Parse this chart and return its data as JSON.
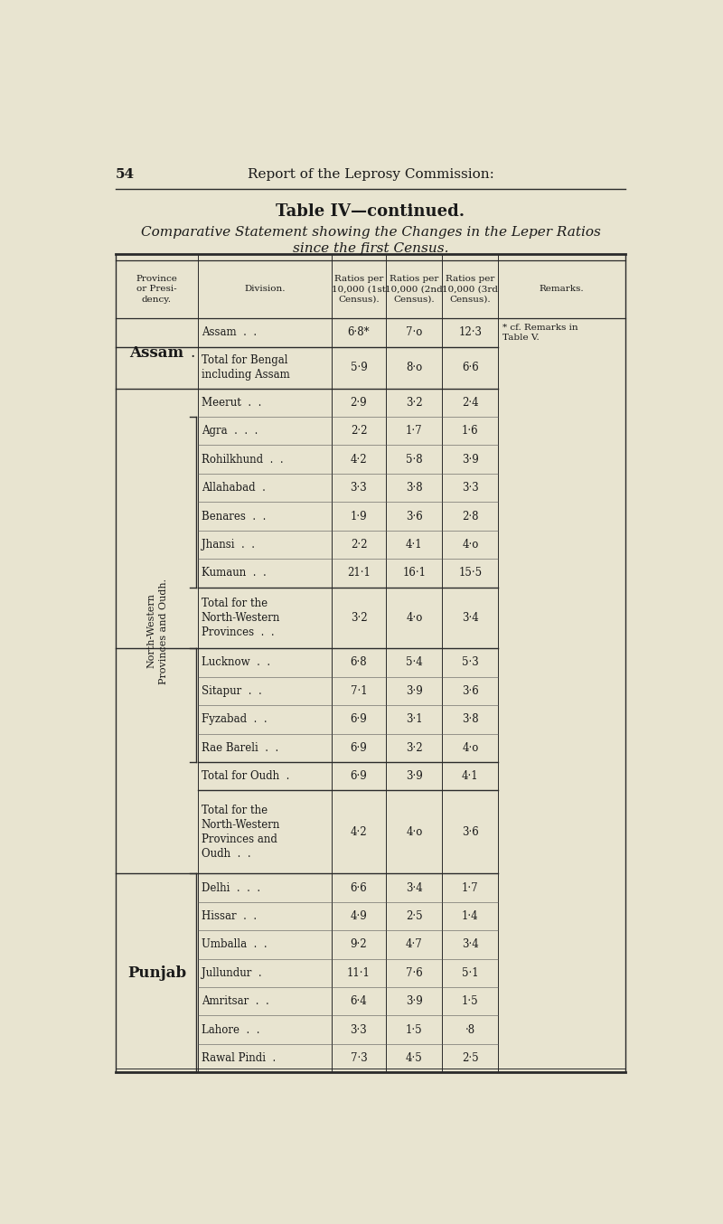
{
  "page_number": "54",
  "header": "Report of the Leprosy Commission:",
  "title": "Table IV—continued.",
  "subtitle": "Comparative Statement showing the Changes in the Leper Ratios\nsince the first Census.",
  "bg_color": "#e8e4d0",
  "rows": [
    {
      "province": "Assam",
      "province_bold": true,
      "division": "Assam  .  .",
      "r1": "6·8*",
      "r2": "7·o",
      "r3": "12·3",
      "remarks": "* cf. Remarks in\nTable V.",
      "div_line_before": false,
      "div_line_after": true
    },
    {
      "province": "",
      "province_bold": false,
      "division": "Total for Bengal\nincluding Assam",
      "r1": "5·9",
      "r2": "8·o",
      "r3": "6·6",
      "remarks": "",
      "div_line_before": false,
      "div_line_after": true
    },
    {
      "province": "",
      "province_bold": false,
      "division": "Meerut  .  .",
      "r1": "2·9",
      "r2": "3·2",
      "r3": "2·4",
      "remarks": "",
      "div_line_before": false,
      "div_line_after": false
    },
    {
      "province": "",
      "province_bold": false,
      "division": "Agra  .  .  .",
      "r1": "2·2",
      "r2": "1·7",
      "r3": "1·6",
      "remarks": "",
      "div_line_before": false,
      "div_line_after": false
    },
    {
      "province": "",
      "province_bold": false,
      "division": "Rohilkhund  .  .",
      "r1": "4·2",
      "r2": "5·8",
      "r3": "3·9",
      "remarks": "",
      "div_line_before": false,
      "div_line_after": false
    },
    {
      "province": "",
      "province_bold": false,
      "division": "Allahabad  .",
      "r1": "3·3",
      "r2": "3·8",
      "r3": "3·3",
      "remarks": "",
      "div_line_before": false,
      "div_line_after": false
    },
    {
      "province": "",
      "province_bold": false,
      "division": "Benares  .  .",
      "r1": "1·9",
      "r2": "3·6",
      "r3": "2·8",
      "remarks": "",
      "div_line_before": false,
      "div_line_after": false
    },
    {
      "province": "",
      "province_bold": false,
      "division": "Jhansi  .  .",
      "r1": "2·2",
      "r2": "4·1",
      "r3": "4·o",
      "remarks": "",
      "div_line_before": false,
      "div_line_after": false
    },
    {
      "province": "",
      "province_bold": false,
      "division": "Kumaun  .  .",
      "r1": "21·1",
      "r2": "16·1",
      "r3": "15·5",
      "remarks": "",
      "div_line_before": false,
      "div_line_after": false
    },
    {
      "province": "",
      "province_bold": false,
      "division": "Total for the\nNorth-Western\nProvinces  .  .",
      "r1": "3·2",
      "r2": "4·o",
      "r3": "3·4",
      "remarks": "",
      "div_line_before": true,
      "div_line_after": true
    },
    {
      "province": "",
      "province_bold": false,
      "division": "Lucknow  .  .",
      "r1": "6·8",
      "r2": "5·4",
      "r3": "5·3",
      "remarks": "",
      "div_line_before": false,
      "div_line_after": false
    },
    {
      "province": "",
      "province_bold": false,
      "division": "Sitapur  .  .",
      "r1": "7·1",
      "r2": "3·9",
      "r3": "3·6",
      "remarks": "",
      "div_line_before": false,
      "div_line_after": false
    },
    {
      "province": "",
      "province_bold": false,
      "division": "Fyzabad  .  .",
      "r1": "6·9",
      "r2": "3·1",
      "r3": "3·8",
      "remarks": "",
      "div_line_before": false,
      "div_line_after": false
    },
    {
      "province": "",
      "province_bold": false,
      "division": "Rae Bareli  .  .",
      "r1": "6·9",
      "r2": "3·2",
      "r3": "4·o",
      "remarks": "",
      "div_line_before": false,
      "div_line_after": false
    },
    {
      "province": "",
      "province_bold": false,
      "division": "Total for Oudh  .",
      "r1": "6·9",
      "r2": "3·9",
      "r3": "4·1",
      "remarks": "",
      "div_line_before": true,
      "div_line_after": false
    },
    {
      "province": "",
      "province_bold": false,
      "division": "Total for the\nNorth-Western\nProvinces and\nOudh  .  .",
      "r1": "4·2",
      "r2": "4·o",
      "r3": "3·6",
      "remarks": "",
      "div_line_before": true,
      "div_line_after": true
    },
    {
      "province": "Punjab",
      "province_bold": true,
      "division": "Delhi  .  .  .",
      "r1": "6·6",
      "r2": "3·4",
      "r3": "1·7",
      "remarks": "",
      "div_line_before": false,
      "div_line_after": false
    },
    {
      "province": "",
      "province_bold": false,
      "division": "Hissar  .  .",
      "r1": "4·9",
      "r2": "2·5",
      "r3": "1·4",
      "remarks": "",
      "div_line_before": false,
      "div_line_after": false
    },
    {
      "province": "",
      "province_bold": false,
      "division": "Umballa  .  .",
      "r1": "9·2",
      "r2": "4·7",
      "r3": "3·4",
      "remarks": "",
      "div_line_before": false,
      "div_line_after": false
    },
    {
      "province": "",
      "province_bold": false,
      "division": "Jullundur  .",
      "r1": "11·1",
      "r2": "7·6",
      "r3": "5·1",
      "remarks": "",
      "div_line_before": false,
      "div_line_after": false
    },
    {
      "province": "",
      "province_bold": false,
      "division": "Amritsar  .  .",
      "r1": "6·4",
      "r2": "3·9",
      "r3": "1·5",
      "remarks": "",
      "div_line_before": false,
      "div_line_after": false
    },
    {
      "province": "",
      "province_bold": false,
      "division": "Lahore  .  .",
      "r1": "3·3",
      "r2": "1·5",
      "r3": "·8",
      "remarks": "",
      "div_line_before": false,
      "div_line_after": false
    },
    {
      "province": "",
      "province_bold": false,
      "division": "Rawal Pindi  .",
      "r1": "7·3",
      "r2": "4·5",
      "r3": "2·5",
      "remarks": "",
      "div_line_before": false,
      "div_line_after": false
    }
  ]
}
